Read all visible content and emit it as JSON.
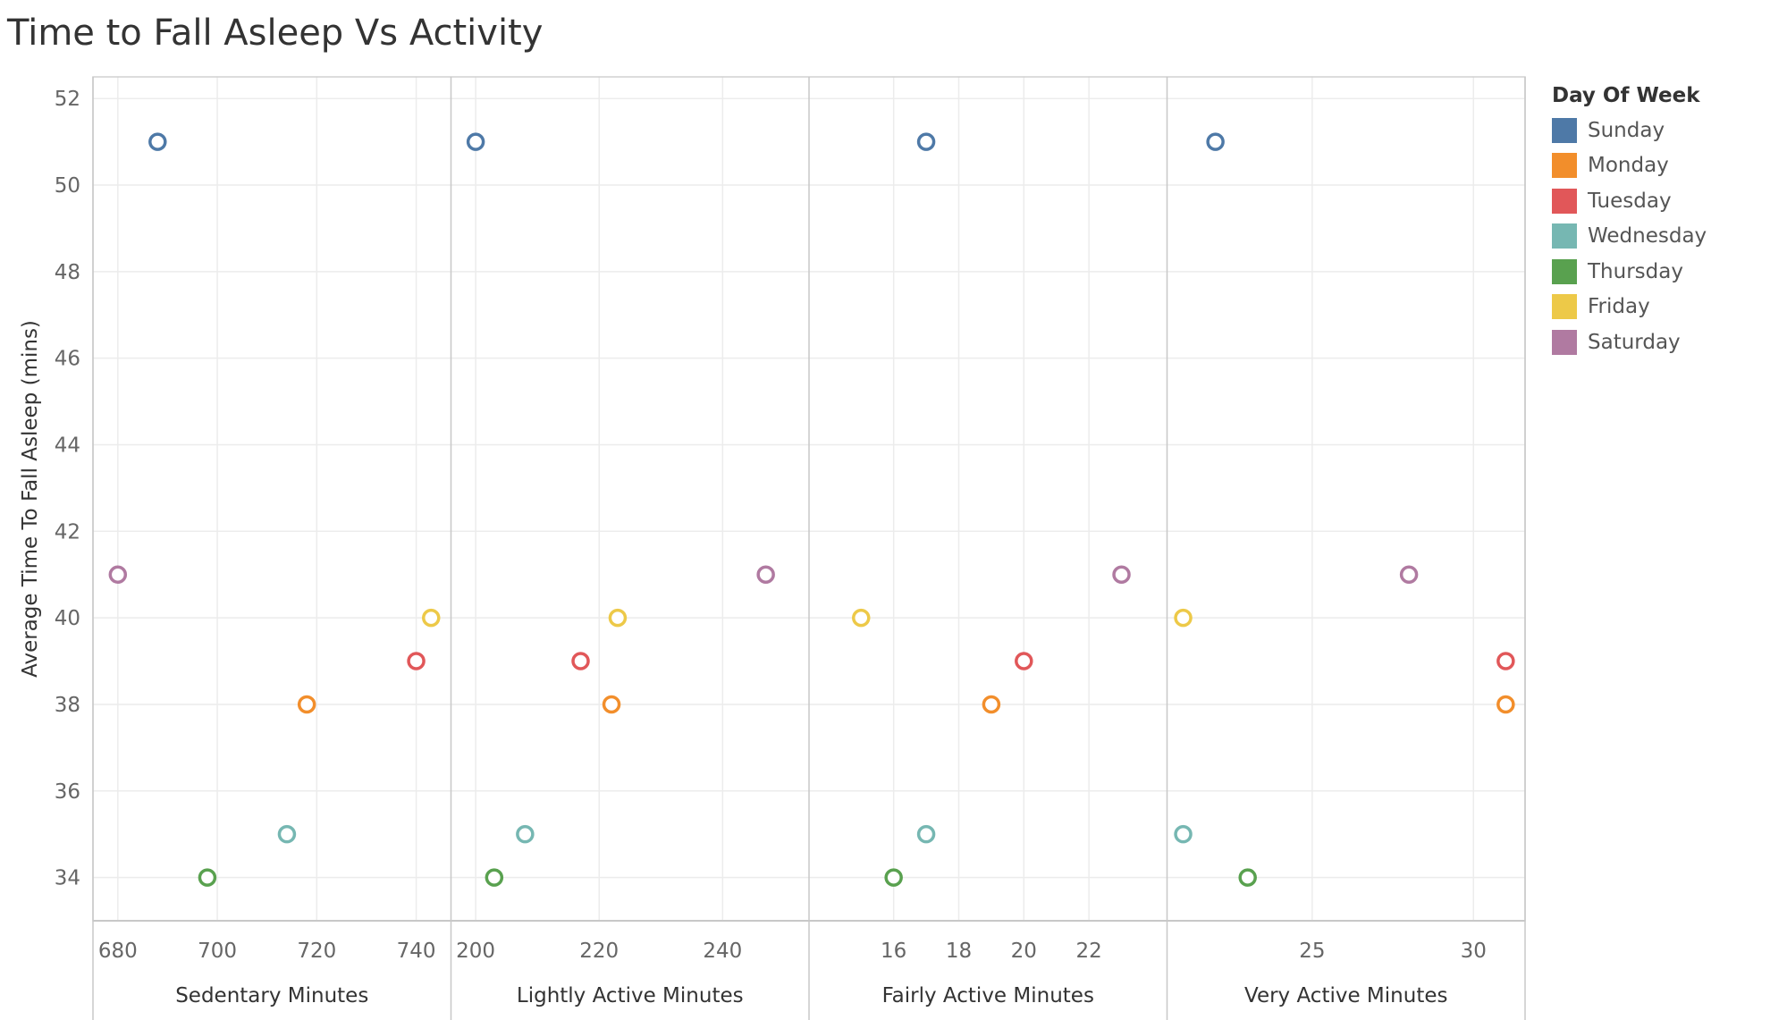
{
  "chart_title": "Time to Fall Asleep Vs Activity",
  "legend": {
    "title": "Day Of Week",
    "items": [
      {
        "label": "Sunday",
        "color": "#4e79a7"
      },
      {
        "label": "Monday",
        "color": "#f28e2b"
      },
      {
        "label": "Tuesday",
        "color": "#e15759"
      },
      {
        "label": "Wednesday",
        "color": "#76b7b2"
      },
      {
        "label": "Thursday",
        "color": "#59a14f"
      },
      {
        "label": "Friday",
        "color": "#edc948"
      },
      {
        "label": "Saturday",
        "color": "#b07aa1"
      }
    ]
  },
  "chart_data": {
    "type": "scatter",
    "title": "Time to Fall Asleep Vs Activity",
    "ylabel": "Average Time To Fall Asleep (mins)",
    "ylim": [
      33,
      52.5
    ],
    "yticks": [
      34,
      36,
      38,
      40,
      42,
      44,
      46,
      48,
      50,
      52
    ],
    "grid": true,
    "legend_position": "right",
    "days": [
      "Sunday",
      "Monday",
      "Tuesday",
      "Wednesday",
      "Thursday",
      "Friday",
      "Saturday"
    ],
    "y_values": [
      51,
      38,
      39,
      35,
      34,
      40,
      41
    ],
    "panels": [
      {
        "xlabel": "Sedentary Minutes",
        "xlim": [
          675,
          747
        ],
        "xticks": [
          680,
          700,
          720,
          740
        ],
        "x_values": [
          688,
          718,
          740,
          714,
          698,
          743,
          680
        ]
      },
      {
        "xlabel": "Lightly Active Minutes",
        "xlim": [
          196,
          254
        ],
        "xticks": [
          200,
          220,
          240
        ],
        "x_values": [
          200,
          222,
          217,
          208,
          203,
          223,
          247
        ]
      },
      {
        "xlabel": "Fairly Active Minutes",
        "xlim": [
          13.4,
          24.4
        ],
        "xticks": [
          16,
          18,
          20,
          22
        ],
        "x_values": [
          17,
          19,
          20,
          17,
          16,
          15,
          23
        ]
      },
      {
        "xlabel": "Very Active Minutes",
        "xlim": [
          20.5,
          31.6
        ],
        "xticks": [
          25,
          30
        ],
        "x_values": [
          22,
          31,
          31,
          21,
          23,
          21,
          28
        ]
      }
    ]
  }
}
